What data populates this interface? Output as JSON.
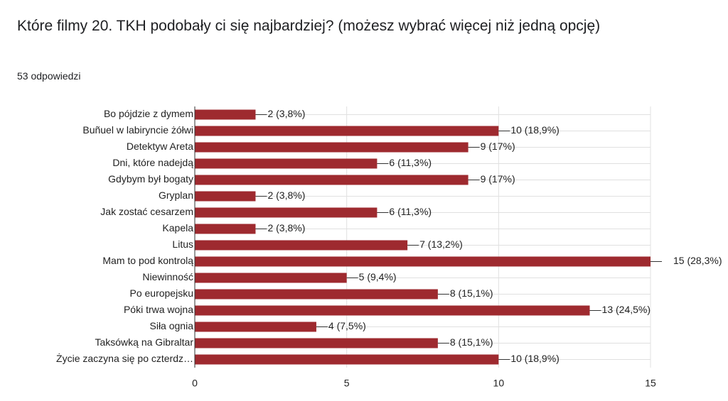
{
  "question": {
    "title": "Które filmy 20. TKH podobały ci się najbardziej? (możesz wybrać więcej niż jedną opcję)",
    "response_count": "53 odpowiedzi"
  },
  "colors": {
    "bar": "#9e2a2f",
    "grid": "#e0e0e0",
    "axis": "#333333",
    "text": "#222222"
  },
  "chart_data": {
    "type": "bar",
    "orientation": "horizontal",
    "title": "",
    "xlabel": "",
    "ylabel": "",
    "xlim": [
      0,
      15
    ],
    "x_ticks": [
      0,
      5,
      10,
      15
    ],
    "grid": true,
    "categories": [
      "Bo pójdzie z dymem",
      "Buñuel w labiryncie żółwi",
      "Detektyw Areta",
      "Dni, które nadejdą",
      "Gdybym był bogaty",
      "Gryplan",
      "Jak zostać cesarzem",
      "Kapela",
      "Litus",
      "Mam to pod kontrolą",
      "Niewinność",
      "Po europejsku",
      "Póki trwa wojna",
      "Siła ognia",
      "Taksówką na Gibraltar",
      "Życie zaczyna się po czterdz…"
    ],
    "values": [
      2,
      10,
      9,
      6,
      9,
      2,
      6,
      2,
      7,
      15,
      5,
      8,
      13,
      4,
      8,
      10
    ],
    "data_labels": [
      "2 (3,8%)",
      "10 (18,9%)",
      "9 (17%)",
      "6 (11,3%)",
      "9 (17%)",
      "2 (3,8%)",
      "6 (11,3%)",
      "2 (3,8%)",
      "7 (13,2%)",
      "15 (28,3%)",
      "5 (9,4%)",
      "8 (15,1%)",
      "13 (24,5%)",
      "4 (7,5%)",
      "8 (15,1%)",
      "10 (18,9%)"
    ]
  }
}
